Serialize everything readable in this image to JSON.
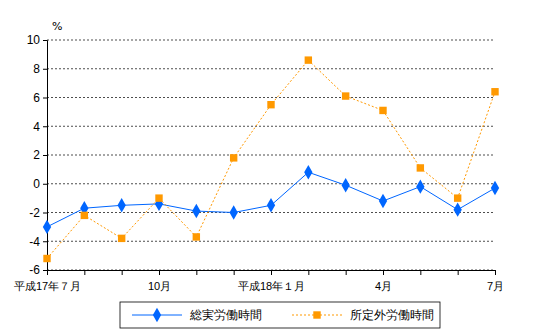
{
  "chart_data": {
    "type": "line",
    "y_label": "%",
    "categories": [
      "平成17年７月",
      null,
      null,
      "10月",
      null,
      null,
      "平成18年１月",
      null,
      null,
      "4月",
      null,
      null,
      "7月"
    ],
    "series": [
      {
        "name": "総実労働時間",
        "color": "#0066ff",
        "marker": "diamond",
        "line_style": "solid",
        "values": [
          -3.0,
          -1.7,
          -1.5,
          -1.4,
          -1.9,
          -2.0,
          -1.5,
          0.8,
          -0.1,
          -1.2,
          -0.2,
          -1.8,
          -0.3
        ]
      },
      {
        "name": "所定外労働時間",
        "color": "#ff9900",
        "marker": "square",
        "line_style": "dotted",
        "values": [
          -5.2,
          -2.2,
          -3.8,
          -1.0,
          -3.7,
          1.8,
          5.5,
          8.6,
          6.1,
          5.1,
          1.1,
          -1.0,
          6.4
        ]
      }
    ],
    "ylim": [
      -6,
      10
    ],
    "yticks": [
      -6,
      -4,
      -2,
      0,
      2,
      4,
      6,
      8,
      10
    ],
    "grid": true,
    "legend": "bottom"
  }
}
